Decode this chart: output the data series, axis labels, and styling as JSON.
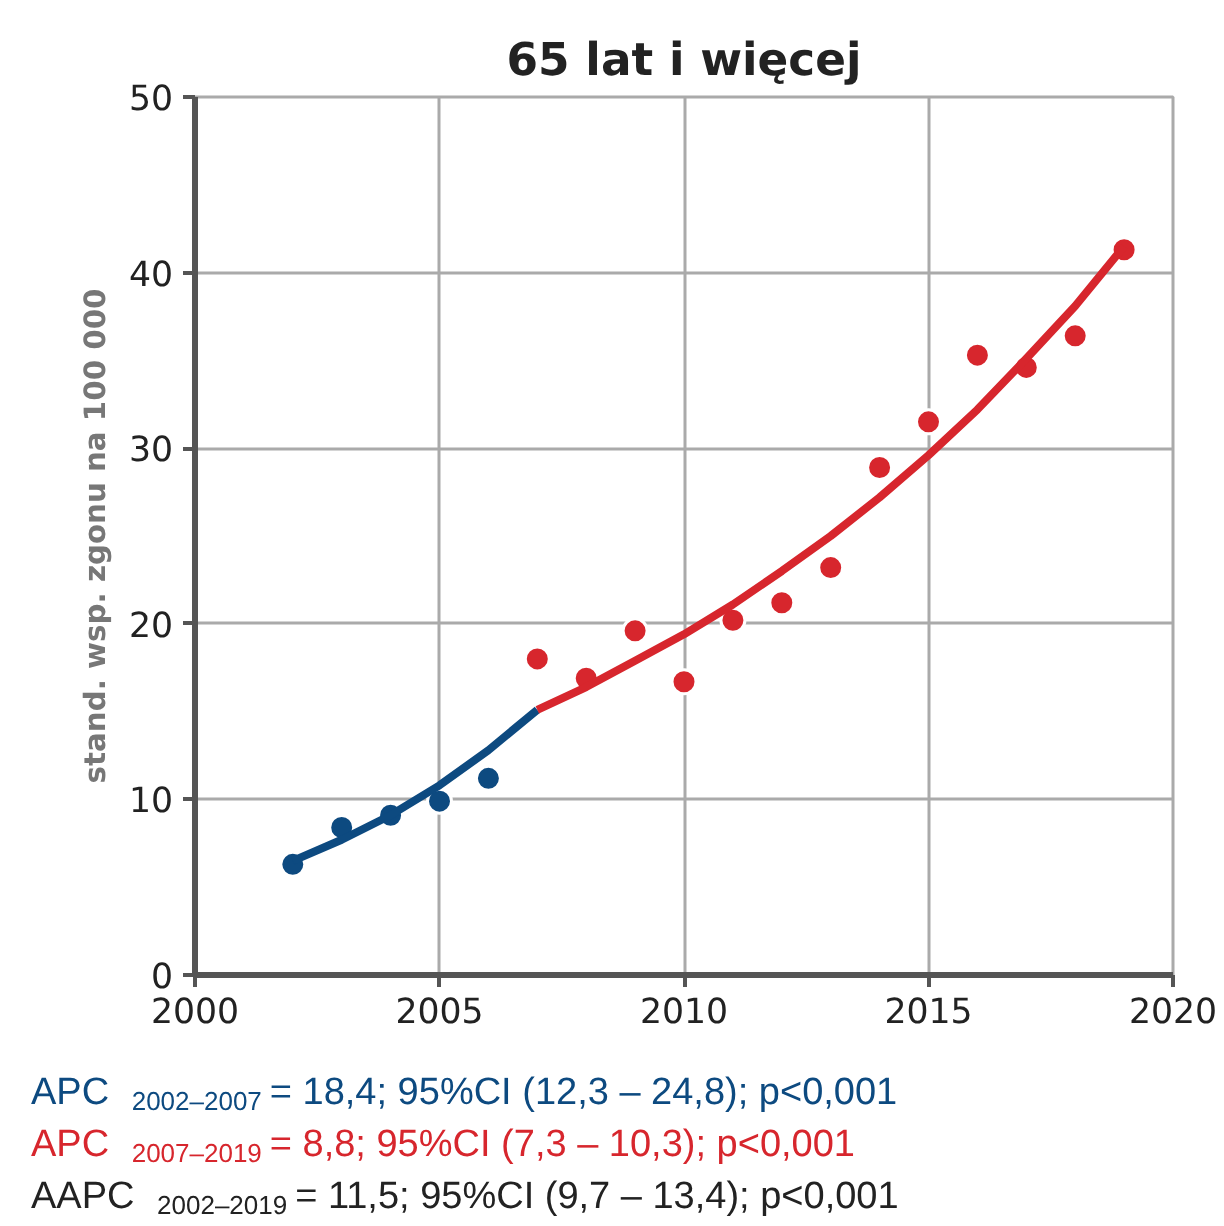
{
  "chart_data": {
    "type": "scatter",
    "title": "65 lat i więcej",
    "ylabel": "stand. wsp. zgonu na 100 000",
    "xlim": [
      2000,
      2020
    ],
    "xticks": [
      2000,
      2005,
      2010,
      2015,
      2020
    ],
    "ylim": [
      0,
      50
    ],
    "yticks": [
      0,
      10,
      20,
      30,
      40,
      50
    ],
    "grid": true,
    "marker": "circle",
    "series": [
      {
        "color": "#0d4a80",
        "x": [
          2002,
          2003,
          2004,
          2005,
          2006
        ],
        "values": [
          6.3,
          8.4,
          9.1,
          9.9,
          11.2
        ]
      },
      {
        "color": "#d7262d",
        "x": [
          2007,
          2008,
          2009,
          2010,
          2011,
          2012,
          2013,
          2014,
          2015,
          2016,
          2017,
          2018,
          2019
        ],
        "values": [
          18.0,
          16.9,
          19.6,
          16.7,
          20.2,
          21.2,
          23.2,
          28.9,
          31.5,
          35.3,
          34.6,
          36.4,
          41.3
        ]
      },
      {
        "type": "line",
        "color": "#0d4a80",
        "marker": "none",
        "x": [
          2002,
          2003,
          2004,
          2005,
          2006,
          2007
        ],
        "values": [
          6.5,
          7.7,
          9.1,
          10.8,
          12.8,
          15.1
        ]
      },
      {
        "type": "line",
        "color": "#d7262d",
        "marker": "none",
        "x": [
          2007,
          2008,
          2009,
          2010,
          2011,
          2012,
          2013,
          2014,
          2015,
          2016,
          2017,
          2018,
          2019
        ],
        "values": [
          15.1,
          16.4,
          17.9,
          19.4,
          21.1,
          23.0,
          25.0,
          27.2,
          29.6,
          32.2,
          35.1,
          38.1,
          41.5
        ]
      }
    ],
    "annotations": [
      "APC $_{2002–2007}$ = 18,4; 95%CI (12,3 – 24,8); p<0,001",
      "APC $_{2007–2019}$ = 8,8; 95%CI (7,3 – 10,3); p<0,001",
      "AAPC $_{2002–2019}$ = 11,5; 95%CI (9,7 – 13,4); p<0,001"
    ]
  }
}
